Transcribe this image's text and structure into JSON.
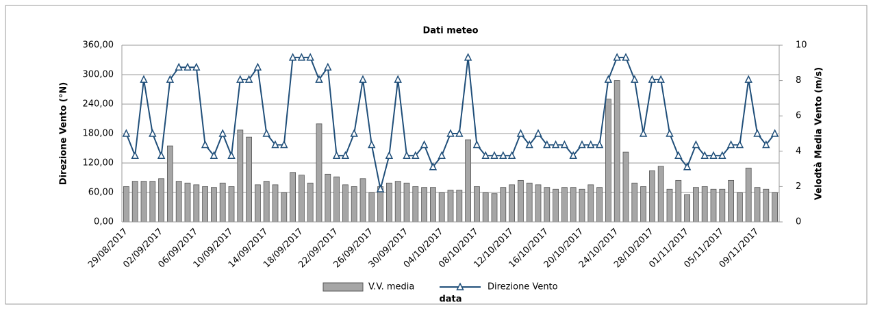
{
  "chart_data": {
    "type": "bar-line",
    "title": "Dati meteo",
    "x_label": "data",
    "y_label": "Direzione Vento (°N)",
    "y2_label": "Velodtà Media Vento (m/s)",
    "categories": [
      "29/08/2017",
      null,
      null,
      null,
      "02/09/2017",
      null,
      null,
      null,
      "06/09/2017",
      null,
      null,
      null,
      "10/09/2017",
      null,
      null,
      null,
      "14/09/2017",
      null,
      null,
      null,
      "18/09/2017",
      null,
      null,
      null,
      "22/09/2017",
      null,
      null,
      null,
      "26/09/2017",
      null,
      null,
      null,
      "30/09/2017",
      null,
      null,
      null,
      "04/10/2017",
      null,
      null,
      null,
      "08/10/2017",
      null,
      null,
      null,
      "12/10/2017",
      null,
      null,
      null,
      "16/10/2017",
      null,
      null,
      null,
      "20/10/2017",
      null,
      null,
      null,
      "24/10/2017",
      null,
      null,
      null,
      "28/10/2017",
      null,
      null,
      null,
      "01/11/2017",
      null,
      null,
      null,
      "05/11/2017",
      null,
      null,
      null,
      "09/11/2017",
      null,
      null
    ],
    "series": [
      {
        "name": "V.V. media",
        "kind": "bar",
        "axis": "y2",
        "color": "#a6a6a6",
        "values": [
          2.0,
          2.3,
          2.3,
          2.3,
          2.45,
          4.3,
          2.3,
          2.2,
          2.1,
          2.0,
          1.95,
          2.2,
          2.0,
          5.2,
          4.8,
          2.1,
          2.3,
          2.1,
          1.65,
          2.8,
          2.65,
          2.2,
          5.55,
          2.7,
          2.55,
          2.1,
          2.0,
          2.45,
          1.65,
          2.0,
          2.2,
          2.3,
          2.2,
          2.0,
          1.95,
          1.95,
          1.65,
          1.8,
          1.8,
          4.65,
          2.0,
          1.65,
          1.6,
          1.95,
          2.1,
          2.35,
          2.2,
          2.1,
          1.95,
          1.85,
          1.95,
          1.95,
          1.85,
          2.1,
          1.95,
          6.95,
          8.0,
          3.95,
          2.2,
          2.0,
          2.9,
          3.15,
          1.85,
          2.35,
          1.55,
          1.95,
          2.0,
          1.85,
          1.85,
          2.35,
          1.65,
          3.05,
          1.95,
          1.85,
          1.65
        ]
      },
      {
        "name": "Direzione Vento",
        "kind": "line",
        "color": "#1f4e79",
        "values": [
          180,
          135,
          290,
          180,
          135,
          290,
          315,
          315,
          315,
          157,
          135,
          180,
          135,
          290,
          290,
          315,
          180,
          157,
          157,
          335,
          335,
          335,
          290,
          315,
          135,
          135,
          180,
          290,
          157,
          67,
          135,
          290,
          135,
          135,
          157,
          112,
          135,
          180,
          180,
          335,
          157,
          135,
          135,
          135,
          135,
          180,
          157,
          180,
          157,
          157,
          157,
          135,
          157,
          157,
          157,
          290,
          335,
          335,
          290,
          180,
          290,
          290,
          180,
          135,
          112,
          157,
          135,
          135,
          135,
          157,
          157,
          290,
          180,
          157,
          180
        ]
      }
    ],
    "ylim": [
      0,
      360
    ],
    "yticks": [
      {
        "value": 0,
        "label": "0,00"
      },
      {
        "value": 60,
        "label": "60,00"
      },
      {
        "value": 120,
        "label": "120,00"
      },
      {
        "value": 180,
        "label": "180,00"
      },
      {
        "value": 240,
        "label": "240,00"
      },
      {
        "value": 300,
        "label": "300,00"
      },
      {
        "value": 360,
        "label": "360,00"
      }
    ],
    "y2lim": [
      0,
      10
    ],
    "y2ticks": [
      0,
      2,
      4,
      6,
      8,
      10
    ],
    "grid": true,
    "legend": "bottom"
  }
}
